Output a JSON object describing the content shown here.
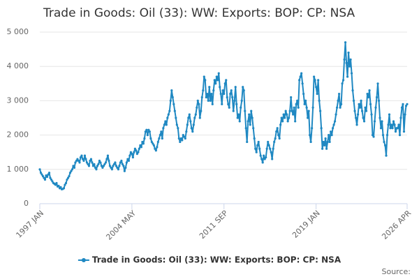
{
  "chart_data": {
    "type": "line",
    "title": "Trade in Goods: Oil (33): WW: Exports: BOP: CP: NSA",
    "source": "Source:",
    "categories": [
      "1997 JAN",
      null,
      null,
      null,
      null,
      null,
      null,
      null,
      null,
      null,
      null,
      null,
      null,
      null,
      null,
      null,
      null,
      null,
      null,
      null,
      null,
      null,
      null,
      null,
      null,
      null,
      null,
      null,
      null,
      null,
      null,
      null,
      null,
      null,
      null,
      null,
      null,
      null,
      null,
      null,
      null,
      null,
      null,
      null,
      null,
      null,
      null,
      null,
      null,
      null,
      null,
      null,
      null,
      null,
      null,
      null,
      null,
      null,
      null,
      null,
      null,
      null,
      null,
      null,
      null,
      null,
      null,
      null,
      null,
      null,
      null,
      null,
      null,
      null,
      null,
      null,
      null,
      null,
      null,
      null,
      null,
      null,
      null,
      null,
      null,
      null,
      null,
      null,
      "2004 MAY",
      null,
      null,
      null,
      null,
      null,
      null,
      null,
      null,
      null,
      null,
      null,
      null,
      null,
      null,
      null,
      null,
      null,
      null,
      null,
      null,
      null,
      null,
      null,
      null,
      null,
      null,
      null,
      null,
      null,
      null,
      null,
      null,
      null,
      null,
      null,
      null,
      null,
      null,
      null,
      null,
      null,
      null,
      null,
      null,
      null,
      null,
      null,
      null,
      null,
      null,
      null,
      null,
      null,
      null,
      null,
      null,
      null,
      null,
      null,
      null,
      null,
      null,
      null,
      null,
      null,
      null,
      null,
      null,
      null,
      null,
      null,
      null,
      null,
      null,
      null,
      null,
      null,
      null,
      null,
      null,
      null,
      null,
      null,
      null,
      null,
      null,
      null,
      "2011 SEP",
      null,
      null,
      null,
      null,
      null,
      null,
      null,
      null,
      null,
      null,
      null,
      null,
      null,
      null,
      null,
      null,
      null,
      null,
      null,
      null,
      null,
      null,
      null,
      null,
      null,
      null,
      null,
      null,
      null,
      null,
      null,
      null,
      null,
      null,
      null,
      null,
      null,
      null,
      null,
      null,
      null,
      null,
      null,
      null,
      null,
      null,
      null,
      null,
      null,
      null,
      null,
      null,
      null,
      null,
      null,
      null,
      null,
      null,
      null,
      null,
      null,
      null,
      null,
      null,
      null,
      null,
      null,
      null,
      null,
      null,
      null,
      null,
      null,
      null,
      null,
      null,
      null,
      null,
      null,
      null,
      null,
      null,
      null,
      null,
      null,
      null,
      null,
      "2019 JAN",
      null,
      null,
      null,
      null,
      null,
      null,
      null,
      null,
      null,
      null,
      null,
      null,
      null,
      null,
      null,
      null,
      null,
      null,
      null,
      null,
      null,
      null,
      null,
      null,
      null,
      null,
      null,
      null,
      null,
      null,
      null,
      null,
      null,
      null,
      null,
      null,
      null,
      null,
      null,
      null,
      null,
      null,
      null,
      null,
      null,
      null,
      null,
      null,
      null,
      null,
      null,
      null,
      null,
      null,
      null,
      null,
      null,
      null,
      null,
      null,
      null,
      null,
      null,
      null,
      null,
      null,
      null,
      null,
      null,
      null,
      null,
      null,
      null,
      null,
      null,
      null,
      null,
      null,
      null,
      null,
      null,
      null,
      null,
      null,
      null,
      null,
      "2026 APR"
    ],
    "series": [
      {
        "name": "Trade in Goods: Oil (33): WW: Exports: BOP: CP: NSA",
        "color": "#1f88c2",
        "values": [
          1000,
          900,
          850,
          800,
          750,
          700,
          820,
          780,
          850,
          900,
          750,
          700,
          650,
          600,
          580,
          550,
          600,
          500,
          520,
          450,
          480,
          420,
          430,
          450,
          550,
          600,
          700,
          750,
          800,
          900,
          950,
          1000,
          1100,
          1050,
          1200,
          1250,
          1300,
          1250,
          1200,
          1350,
          1400,
          1300,
          1250,
          1400,
          1300,
          1200,
          1150,
          1100,
          1250,
          1300,
          1200,
          1100,
          1150,
          1050,
          1000,
          1100,
          1150,
          1250,
          1200,
          1100,
          1050,
          1100,
          1150,
          1200,
          1300,
          1400,
          1250,
          1100,
          1050,
          1000,
          1100,
          1150,
          1200,
          1100,
          1050,
          1000,
          1100,
          1200,
          1250,
          1150,
          1100,
          950,
          1050,
          1200,
          1300,
          1250,
          1400,
          1500,
          1450,
          1350,
          1500,
          1600,
          1550,
          1450,
          1500,
          1600,
          1700,
          1650,
          1800,
          1750,
          1900,
          2100,
          2150,
          2000,
          2150,
          2100,
          1900,
          1800,
          1750,
          1700,
          1600,
          1550,
          1650,
          1800,
          1900,
          2000,
          2100,
          1900,
          2200,
          2300,
          2400,
          2300,
          2500,
          2600,
          2700,
          3000,
          3300,
          3100,
          2900,
          2700,
          2500,
          2300,
          2200,
          1900,
          1800,
          1900,
          1850,
          2000,
          1950,
          1900,
          2100,
          2300,
          2500,
          2600,
          2400,
          2200,
          2100,
          2300,
          2500,
          2600,
          2800,
          3000,
          2900,
          2500,
          2700,
          3100,
          3300,
          3700,
          3600,
          3100,
          3200,
          3000,
          3400,
          3000,
          3200,
          2900,
          3300,
          3600,
          3500,
          3700,
          3600,
          3800,
          3400,
          3200,
          2900,
          3300,
          3200,
          3500,
          3600,
          3100,
          2900,
          2800,
          3200,
          3300,
          3100,
          2700,
          3000,
          3400,
          2900,
          2500,
          2600,
          2400,
          2800,
          3000,
          3400,
          3300,
          2700,
          2200,
          1800,
          2400,
          2600,
          2300,
          2700,
          2500,
          2200,
          1900,
          1600,
          1500,
          1700,
          1800,
          1600,
          1400,
          1300,
          1200,
          1400,
          1300,
          1350,
          1600,
          1800,
          1700,
          1600,
          1500,
          1300,
          1600,
          1800,
          1900,
          2100,
          2200,
          2000,
          1900,
          2300,
          2500,
          2400,
          2600,
          2500,
          2700,
          2600,
          2400,
          2500,
          2700,
          3100,
          2700,
          2600,
          2800,
          2400,
          2900,
          3000,
          2800,
          3600,
          3700,
          3800,
          3500,
          3200,
          2900,
          3000,
          2800,
          2500,
          2700,
          2000,
          1800,
          2200,
          2800,
          3700,
          3600,
          3400,
          3200,
          3600,
          3000,
          2700,
          2200,
          1600,
          1800,
          1700,
          1900,
          1600,
          1800,
          2000,
          1800,
          2100,
          2000,
          2200,
          2300,
          2400,
          2600,
          2800,
          3000,
          3200,
          2800,
          2900,
          3500,
          3600,
          4200,
          4700,
          4100,
          3700,
          4400,
          4000,
          4200,
          3800,
          3300,
          3000,
          2700,
          2500,
          2300,
          2600,
          2900,
          2800,
          3000,
          2700,
          2500,
          2400,
          2800,
          2700,
          3200,
          3100,
          3300,
          2900,
          2600,
          2000,
          1950,
          2400,
          2800,
          3100,
          3500,
          3000,
          2500,
          2200,
          2400,
          2000,
          1800,
          1700,
          1400,
          2000,
          2300,
          2600,
          2200,
          2300,
          2200,
          2400,
          2300,
          2100,
          2200,
          2200,
          2300,
          2000,
          2500,
          2800,
          2900,
          2100,
          2600,
          2850,
          2900
        ]
      }
    ],
    "ylim": [
      0,
      5000
    ],
    "yticks": [
      0,
      {
        "value": 1000,
        "label": "1 000"
      },
      {
        "value": 2000,
        "label": "2 000"
      },
      {
        "value": 3000,
        "label": "3 000"
      },
      {
        "value": 4000,
        "label": "4 000"
      },
      {
        "value": 5000,
        "label": "5 000"
      }
    ],
    "grid": true
  }
}
